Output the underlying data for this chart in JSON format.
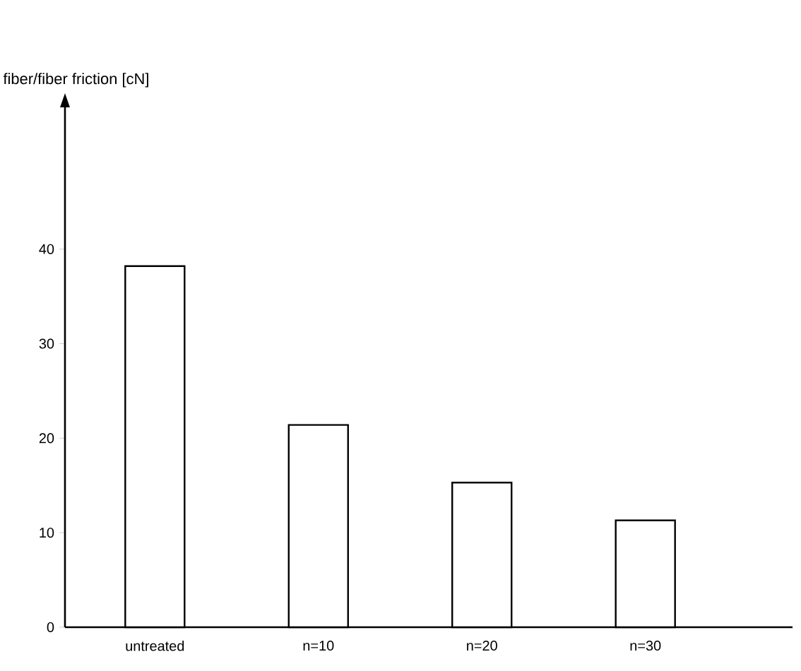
{
  "chart_data": {
    "type": "bar",
    "ylabel": "fiber/fiber friction [cN]",
    "categories": [
      "untreated",
      "n=10",
      "n=20",
      "n=30"
    ],
    "values": [
      38.2,
      21.4,
      15.3,
      11.3
    ],
    "color": "#ffffff",
    "ylim": [
      0,
      55
    ],
    "yticks": [
      0,
      10,
      20,
      30,
      40
    ],
    "grid": false
  }
}
